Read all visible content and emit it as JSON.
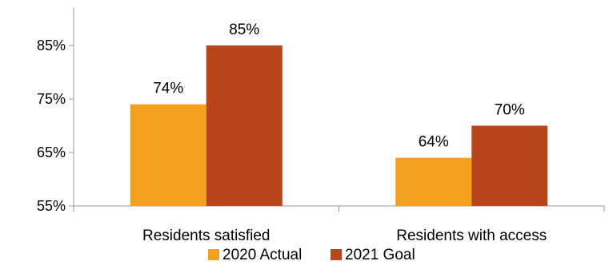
{
  "chart_data": {
    "type": "bar",
    "categories": [
      "Residents satisfied",
      "Residents with access"
    ],
    "series": [
      {
        "name": "2020 Actual",
        "values": [
          74,
          64
        ],
        "labels": [
          "74%",
          "64%"
        ],
        "color": "#F2A01E"
      },
      {
        "name": "2021 Goal",
        "values": [
          85,
          70
        ],
        "labels": [
          "85%",
          "70%"
        ],
        "color": "#B8461A"
      }
    ],
    "ylim": [
      55,
      92
    ],
    "y_ticks": [
      55,
      65,
      75,
      85
    ],
    "y_tick_labels": [
      "55%",
      "65%",
      "75%",
      "85%"
    ],
    "grid": false,
    "legend_position": "bottom"
  }
}
